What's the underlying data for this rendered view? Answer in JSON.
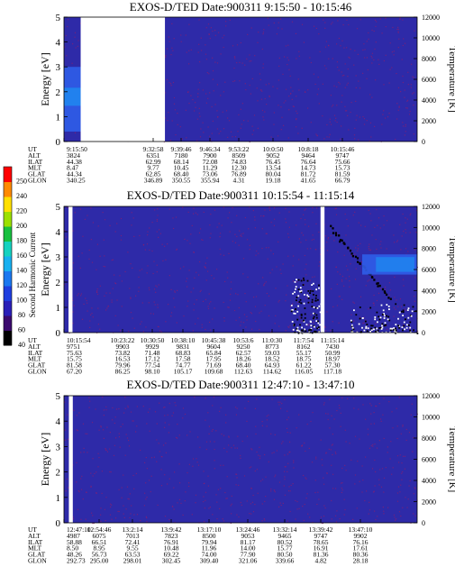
{
  "colorbar": {
    "label": "Second Harmonic Current",
    "ticks": [
      "40",
      "60",
      "80",
      "100",
      "120",
      "140",
      "160",
      "180",
      "200",
      "220",
      "240",
      "250"
    ],
    "colors": [
      "#000000",
      "#3b0a6e",
      "#2a1fb8",
      "#1f3fe0",
      "#1b78f0",
      "#18b0f0",
      "#16d2c0",
      "#18c040",
      "#9ce000",
      "#ffe000",
      "#ff8a00",
      "#ff0000"
    ]
  },
  "colors": {
    "background": "#2e2aa8",
    "speckle": "#8a1f6f",
    "band_high": "#1e88f0",
    "band_low": "#2f5de8",
    "trace": "#000000",
    "gap": "#ffffff"
  },
  "chart_data": [
    {
      "type": "heatmap",
      "title": "EXOS-D/TED   Date:900311   9:15:50 - 10:15:46",
      "ylabel": "Energy [eV]",
      "ylabel_right": "Temperature [K]",
      "ylim": [
        0,
        5
      ],
      "y_ticks": [
        "0",
        "1",
        "2",
        "3",
        "4",
        "5"
      ],
      "ylim_right": [
        0,
        12000
      ],
      "y_ticks_right": [
        "0",
        "2000",
        "4000",
        "6000",
        "8000",
        "10000",
        "12000"
      ],
      "ephemeris_labels": [
        "UT",
        "ALT",
        "ILAT",
        "MLT",
        "GLAT",
        "GLON"
      ],
      "columns": [
        {
          "UT": "9:15:50",
          "ALT": "3824",
          "ILAT": "44.38",
          "MLT": "8.47",
          "GLAT": "44.34",
          "GLON": "340.25"
        },
        {
          "UT": "9:32:58",
          "ALT": "6351",
          "ILAT": "62.99",
          "MLT": "9.77",
          "GLAT": "62.85",
          "GLON": "346.89"
        },
        {
          "UT": "9:39:46",
          "ALT": "7180",
          "ILAT": "68.14",
          "MLT": "10.45",
          "GLAT": "68.40",
          "GLON": "350.55"
        },
        {
          "UT": "9:46:34",
          "ALT": "7900",
          "ILAT": "72.08",
          "MLT": "11.29",
          "GLAT": "73.06",
          "GLON": "355.94"
        },
        {
          "UT": "9:53:22",
          "ALT": "8509",
          "ILAT": "74.83",
          "MLT": "12.30",
          "GLAT": "76.89",
          "GLON": "4.31"
        },
        {
          "UT": "10:0:50",
          "ALT": "9052",
          "ILAT": "76.45",
          "MLT": "13.54",
          "GLAT": "80.04",
          "GLON": "19.18"
        },
        {
          "UT": "10:8:18",
          "ALT": "9464",
          "ILAT": "76.64",
          "MLT": "14.73",
          "GLAT": "81.72",
          "GLON": "41.65"
        },
        {
          "UT": "10:15:46",
          "ALT": "9747",
          "ILAT": "75.66",
          "MLT": "15.73",
          "GLAT": "81.59",
          "GLON": "66.79"
        }
      ],
      "data_gaps_ut": [
        [
          "9:18:40",
          "9:32:58"
        ]
      ],
      "features": [
        {
          "kind": "band",
          "ut_range": [
            "9:15:50",
            "9:18:40"
          ],
          "energy_range": [
            0.4,
            3.0
          ],
          "peak_energy": 1.8
        }
      ]
    },
    {
      "type": "heatmap",
      "title": "EXOS-D/TED   Date:900311   10:15:54 - 11:15:14",
      "ylabel": "Energy [eV]",
      "ylabel_right": "Temperature [K]",
      "ylim": [
        0,
        5
      ],
      "y_ticks": [
        "0",
        "1",
        "2",
        "3",
        "4",
        "5"
      ],
      "ylim_right": [
        0,
        12000
      ],
      "y_ticks_right": [
        "0",
        "2000",
        "4000",
        "6000",
        "8000",
        "10000",
        "12000"
      ],
      "ephemeris_labels": [
        "UT",
        "ALT",
        "ILAT",
        "MLT",
        "GLAT",
        "GLON"
      ],
      "columns": [
        {
          "UT": "10:15:54",
          "ALT": "9751",
          "ILAT": "75.63",
          "MLT": "15.75",
          "GLAT": "81.58",
          "GLON": "67.20"
        },
        {
          "UT": "10:23:22",
          "ALT": "9903",
          "ILAT": "73.82",
          "MLT": "16.53",
          "GLAT": "79.96",
          "GLON": "86.25"
        },
        {
          "UT": "10:30:50",
          "ALT": "9929",
          "ILAT": "71.48",
          "MLT": "17.12",
          "GLAT": "77.54",
          "GLON": "98.10"
        },
        {
          "UT": "10:38:10",
          "ALT": "9831",
          "ILAT": "68.83",
          "MLT": "17.58",
          "GLAT": "74.77",
          "GLON": "105.17"
        },
        {
          "UT": "10:45:38",
          "ALT": "9604",
          "ILAT": "65.84",
          "MLT": "17.95",
          "GLAT": "71.69",
          "GLON": "109.68"
        },
        {
          "UT": "10:53:6",
          "ALT": "9250",
          "ILAT": "62.57",
          "MLT": "18.26",
          "GLAT": "68.40",
          "GLON": "112.63"
        },
        {
          "UT": "11:0:30",
          "ALT": "8773",
          "ILAT": "59.03",
          "MLT": "18.52",
          "GLAT": "64.93",
          "GLON": "114.62"
        },
        {
          "UT": "11:7:54",
          "ALT": "8162",
          "ILAT": "55.17",
          "MLT": "18.75",
          "GLAT": "61.22",
          "GLON": "116.05"
        },
        {
          "UT": "11:15:14",
          "ALT": "7430",
          "ILAT": "50.99",
          "MLT": "18.97",
          "GLAT": "57.30",
          "GLON": "117.18"
        }
      ],
      "data_gaps_ut": [
        [
          "10:16:40",
          "10:17:20"
        ],
        [
          "10:59:00",
          "10:59:40"
        ]
      ],
      "features": [
        {
          "kind": "trace",
          "ut_range": [
            "11:00:30",
            "11:10:30"
          ],
          "energy_range": [
            4.2,
            1.4
          ],
          "note": "descending dark trace"
        },
        {
          "kind": "patch",
          "ut_range": [
            "10:54:00",
            "10:59:00"
          ],
          "energy_range": [
            0.0,
            2.2
          ],
          "note": "dark/white speckled patch"
        },
        {
          "kind": "patch",
          "ut_range": [
            "11:04:00",
            "11:15:14"
          ],
          "energy_range": [
            0.0,
            1.2
          ],
          "note": "dark/white speckled patch"
        },
        {
          "kind": "band",
          "ut_range": [
            "11:06:00",
            "11:15:14"
          ],
          "energy_range": [
            2.3,
            3.1
          ],
          "note": "light blue band"
        }
      ]
    },
    {
      "type": "heatmap",
      "title": "EXOS-D/TED   Date:900311   12:47:10 - 13:47:10",
      "ylabel": "Energy [eV]",
      "ylabel_right": "Temperature [K]",
      "ylim": [
        0,
        5
      ],
      "y_ticks": [
        "0",
        "1",
        "2",
        "3",
        "4",
        "5"
      ],
      "ylim_right": [
        0,
        12000
      ],
      "y_ticks_right": [
        "0",
        "2000",
        "4000",
        "6000",
        "8000",
        "10000",
        "12000"
      ],
      "ephemeris_labels": [
        "UT",
        "ALT",
        "ILAT",
        "MLT",
        "GLAT",
        "GLON"
      ],
      "columns": [
        {
          "UT": "12:47:10",
          "ALT": "4987",
          "ILAT": "58.88",
          "MLT": "8.50",
          "GLAT": "48.26",
          "GLON": "292.73"
        },
        {
          "UT": "12:54:46",
          "ALT": "6075",
          "ILAT": "66.51",
          "MLT": "8.95",
          "GLAT": "56.73",
          "GLON": "295.00"
        },
        {
          "UT": "13:2:14",
          "ALT": "7013",
          "ILAT": "72.41",
          "MLT": "9.55",
          "GLAT": "63.53",
          "GLON": "298.01"
        },
        {
          "UT": "13:9:42",
          "ALT": "7823",
          "ILAT": "76.91",
          "MLT": "10.48",
          "GLAT": "69.22",
          "GLON": "302.45"
        },
        {
          "UT": "13:17:10",
          "ALT": "8500",
          "ILAT": "79.94",
          "MLT": "11.96",
          "GLAT": "74.00",
          "GLON": "309.40"
        },
        {
          "UT": "13:24:46",
          "ALT": "9053",
          "ILAT": "81.17",
          "MLT": "14.00",
          "GLAT": "77.90",
          "GLON": "321.06"
        },
        {
          "UT": "13:32:14",
          "ALT": "9465",
          "ILAT": "80.52",
          "MLT": "15.77",
          "GLAT": "80.50",
          "GLON": "339.66"
        },
        {
          "UT": "13:39:42",
          "ALT": "9747",
          "ILAT": "78.65",
          "MLT": "16.91",
          "GLAT": "81.36",
          "GLON": "4.82"
        },
        {
          "UT": "13:47:10",
          "ALT": "9902",
          "ILAT": "76.16",
          "MLT": "17.61",
          "GLAT": "80.36",
          "GLON": "28.18"
        }
      ],
      "data_gaps_ut": [
        [
          "12:48:00",
          "12:48:40"
        ]
      ],
      "features": []
    }
  ]
}
